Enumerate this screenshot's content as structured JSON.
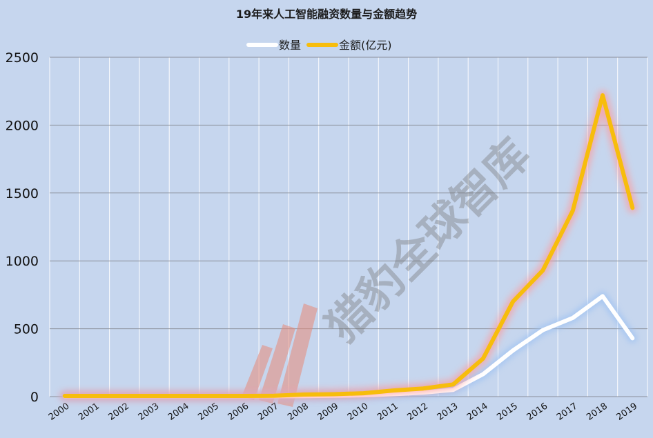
{
  "chart_data": {
    "type": "line",
    "title": "19年来人工智能融资数量与金额趋势",
    "legend_position": "top-center",
    "x": [
      "2000",
      "2001",
      "2002",
      "2003",
      "2004",
      "2005",
      "2006",
      "2007",
      "2008",
      "2009",
      "2010",
      "2011",
      "2012",
      "2013",
      "2014",
      "2015",
      "2016",
      "2017",
      "2018",
      "2019"
    ],
    "ylim": [
      0,
      2500
    ],
    "yticks": [
      0,
      500,
      1000,
      1500,
      2000,
      2500
    ],
    "grid": true,
    "series": [
      {
        "name": "数量",
        "color": "#ffffff",
        "glow": "#9fc2f2",
        "values": [
          3,
          3,
          3,
          3,
          3,
          3,
          3,
          3,
          4,
          6,
          10,
          18,
          30,
          50,
          165,
          340,
          490,
          580,
          740,
          430
        ]
      },
      {
        "name": "金额(亿元)",
        "color": "#f7bd0c",
        "glow": "#ff9a9a",
        "values": [
          5,
          5,
          5,
          5,
          5,
          5,
          5,
          6,
          15,
          18,
          25,
          45,
          60,
          90,
          280,
          700,
          930,
          1370,
          2220,
          1390
        ]
      }
    ]
  },
  "watermark": {
    "text": "猎豹全球智库",
    "logo": "cheetah-stripes-logo"
  }
}
